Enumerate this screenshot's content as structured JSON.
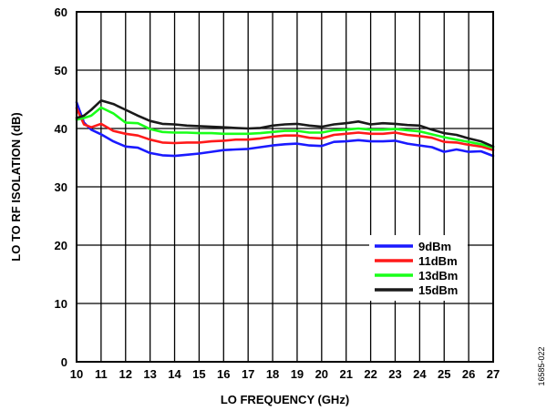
{
  "chart_data": {
    "type": "line",
    "xlabel": "LO FREQUENCY (GHz)",
    "ylabel": "LO TO RF ISOLATION (dB)",
    "xlim": [
      10,
      27
    ],
    "ylim": [
      0,
      60
    ],
    "x_ticks": [
      10,
      11,
      12,
      13,
      14,
      15,
      16,
      17,
      18,
      19,
      20,
      21,
      22,
      23,
      24,
      25,
      26,
      27
    ],
    "y_ticks": [
      0,
      10,
      20,
      30,
      40,
      50,
      60
    ],
    "grid": true,
    "legend_position": "lower-right",
    "figure_id": "16585-022",
    "series": [
      {
        "name": "9dBm",
        "color": "#1a1aff",
        "x": [
          10,
          10.3,
          10.6,
          11,
          11.5,
          12,
          12.5,
          13,
          13.5,
          14,
          14.5,
          15,
          15.5,
          16,
          16.5,
          17,
          17.5,
          18,
          18.5,
          19,
          19.5,
          20,
          20.5,
          21,
          21.5,
          22,
          22.5,
          23,
          23.5,
          24,
          24.5,
          25,
          25.5,
          26,
          26.5,
          27
        ],
        "y": [
          44.5,
          41,
          39.8,
          39,
          37.8,
          36.9,
          36.7,
          35.8,
          35.4,
          35.3,
          35.5,
          35.7,
          36,
          36.3,
          36.4,
          36.5,
          36.8,
          37.1,
          37.3,
          37.4,
          37.1,
          37,
          37.7,
          37.8,
          38,
          37.8,
          37.8,
          37.9,
          37.4,
          37.1,
          36.8,
          36,
          36.4,
          36,
          36.1,
          35.3
        ]
      },
      {
        "name": "11dBm",
        "color": "#ff1a1a",
        "x": [
          10,
          10.3,
          10.6,
          11,
          11.5,
          12,
          12.5,
          13,
          13.5,
          14,
          14.5,
          15,
          15.5,
          16,
          16.5,
          17,
          17.5,
          18,
          18.5,
          19,
          19.5,
          20,
          20.5,
          21,
          21.5,
          22,
          22.5,
          23,
          23.5,
          24,
          24.5,
          25,
          25.5,
          26,
          26.5,
          27
        ],
        "y": [
          43.5,
          40.7,
          40.2,
          40.8,
          39.6,
          39.1,
          38.8,
          38.1,
          37.6,
          37.5,
          37.6,
          37.6,
          37.8,
          37.9,
          38.1,
          38.1,
          38.3,
          38.6,
          38.8,
          38.8,
          38.4,
          38.3,
          38.9,
          39.1,
          39.3,
          39.1,
          39.1,
          39.3,
          38.9,
          38.7,
          38.4,
          37.7,
          37.6,
          37.2,
          36.9,
          36.3
        ]
      },
      {
        "name": "13dBm",
        "color": "#1aff1a",
        "x": [
          10,
          10.3,
          10.6,
          11,
          11.5,
          12,
          12.5,
          13,
          13.5,
          14,
          14.5,
          15,
          15.5,
          16,
          16.5,
          17,
          17.5,
          18,
          18.5,
          19,
          19.5,
          20,
          20.5,
          21,
          21.5,
          22,
          22.5,
          23,
          23.5,
          24,
          24.5,
          25,
          25.5,
          26,
          26.5,
          27
        ],
        "y": [
          41.5,
          41.8,
          42.2,
          43.6,
          42.6,
          41,
          40.9,
          39.9,
          39.4,
          39.3,
          39.3,
          39.2,
          39.2,
          39.1,
          39.1,
          39.1,
          39.2,
          39.4,
          39.6,
          39.6,
          39.3,
          39.3,
          39.7,
          39.8,
          40,
          39.8,
          39.8,
          39.9,
          39.7,
          39.5,
          39,
          38.5,
          38.1,
          37.7,
          37.3,
          36.7
        ]
      },
      {
        "name": "15dBm",
        "color": "#1a1a1a",
        "x": [
          10,
          10.3,
          10.6,
          11,
          11.5,
          12,
          12.5,
          13,
          13.5,
          14,
          14.5,
          15,
          15.5,
          16,
          16.5,
          17,
          17.5,
          18,
          18.5,
          19,
          19.5,
          20,
          20.5,
          21,
          21.5,
          22,
          22.5,
          23,
          23.5,
          24,
          24.5,
          25,
          25.5,
          26,
          26.5,
          27
        ],
        "y": [
          41.8,
          42.2,
          43.2,
          44.8,
          44.2,
          43.2,
          42.2,
          41.3,
          40.8,
          40.7,
          40.5,
          40.4,
          40.3,
          40.2,
          40.1,
          40,
          40.1,
          40.5,
          40.7,
          40.8,
          40.5,
          40.3,
          40.7,
          40.9,
          41.2,
          40.7,
          40.9,
          40.8,
          40.6,
          40.5,
          39.8,
          39.2,
          38.9,
          38.3,
          37.8,
          36.9
        ]
      }
    ]
  }
}
